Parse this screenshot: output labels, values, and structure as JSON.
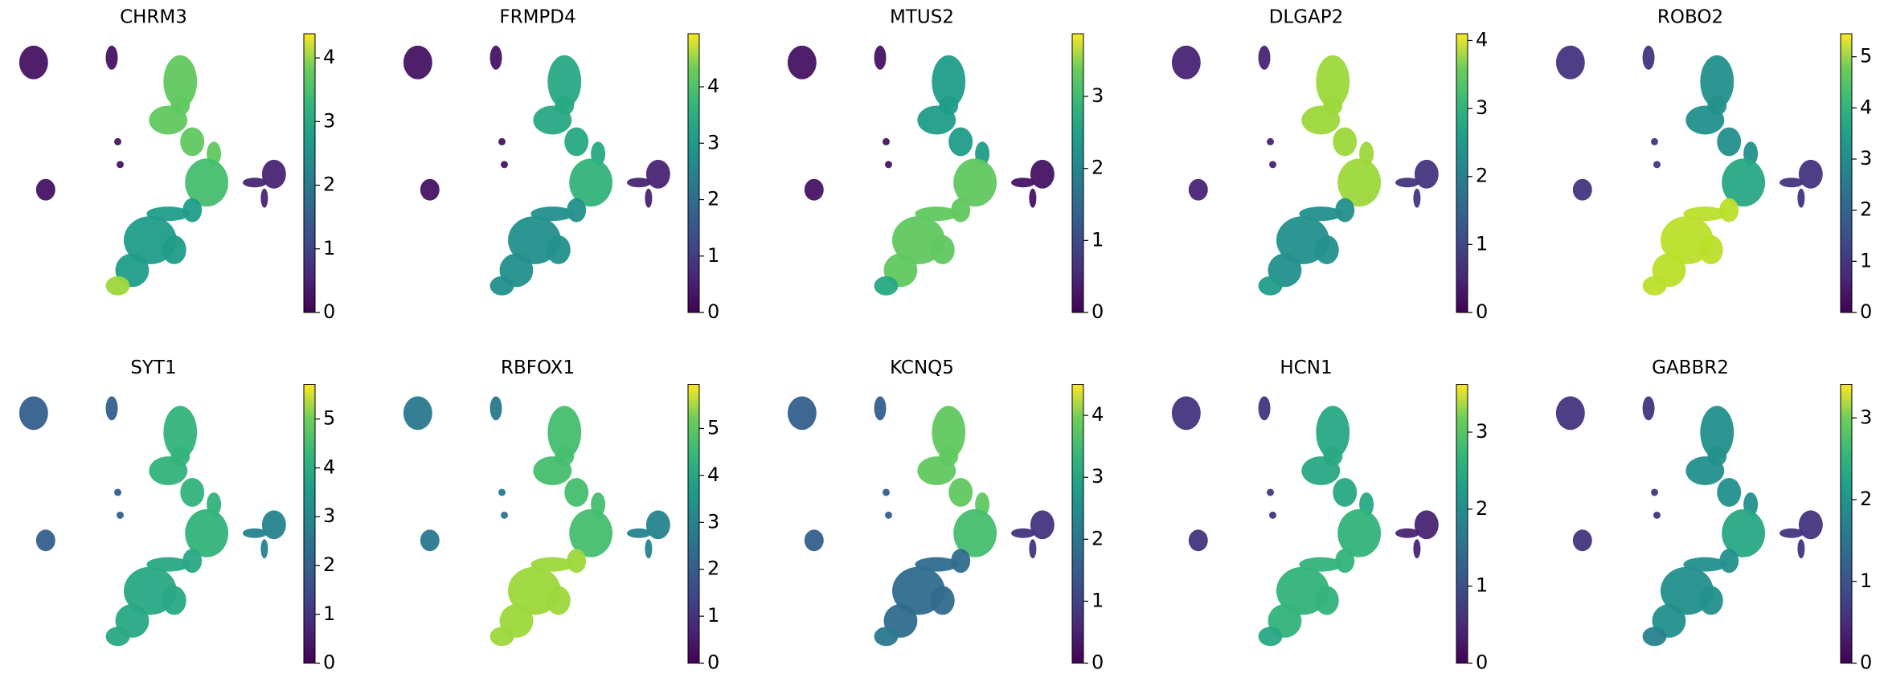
{
  "chart_data": [
    {
      "type": "scatter",
      "title": "CHRM3",
      "clim": [
        0,
        4.38
      ],
      "cticks": [
        0,
        1,
        2,
        3,
        4
      ]
    },
    {
      "type": "scatter",
      "title": "FRMPD4",
      "clim": [
        0,
        4.94
      ],
      "cticks": [
        0,
        1,
        2,
        3,
        4
      ]
    },
    {
      "type": "scatter",
      "title": "MTUS2",
      "clim": [
        0,
        3.87
      ],
      "cticks": [
        0,
        1,
        2,
        3
      ]
    },
    {
      "type": "scatter",
      "title": "DLGAP2",
      "clim": [
        0,
        4.1
      ],
      "cticks": [
        0,
        1,
        2,
        3,
        4
      ]
    },
    {
      "type": "scatter",
      "title": "ROBO2",
      "clim": [
        0,
        5.45
      ],
      "cticks": [
        0,
        1,
        2,
        3,
        4,
        5
      ]
    },
    {
      "type": "scatter",
      "title": "SYT1",
      "clim": [
        0,
        5.71
      ],
      "cticks": [
        0,
        1,
        2,
        3,
        4,
        5
      ]
    },
    {
      "type": "scatter",
      "title": "RBFOX1",
      "clim": [
        0,
        5.94
      ],
      "cticks": [
        0,
        1,
        2,
        3,
        4,
        5
      ]
    },
    {
      "type": "scatter",
      "title": "KCNQ5",
      "clim": [
        0,
        4.5
      ],
      "cticks": [
        0,
        1,
        2,
        3,
        4
      ]
    },
    {
      "type": "scatter",
      "title": "HCN1",
      "clim": [
        0,
        3.62
      ],
      "cticks": [
        0,
        1,
        2,
        3
      ]
    },
    {
      "type": "scatter",
      "title": "GABBR2",
      "clim": [
        0,
        3.41
      ],
      "cticks": [
        0,
        1,
        2,
        3
      ]
    }
  ]
}
